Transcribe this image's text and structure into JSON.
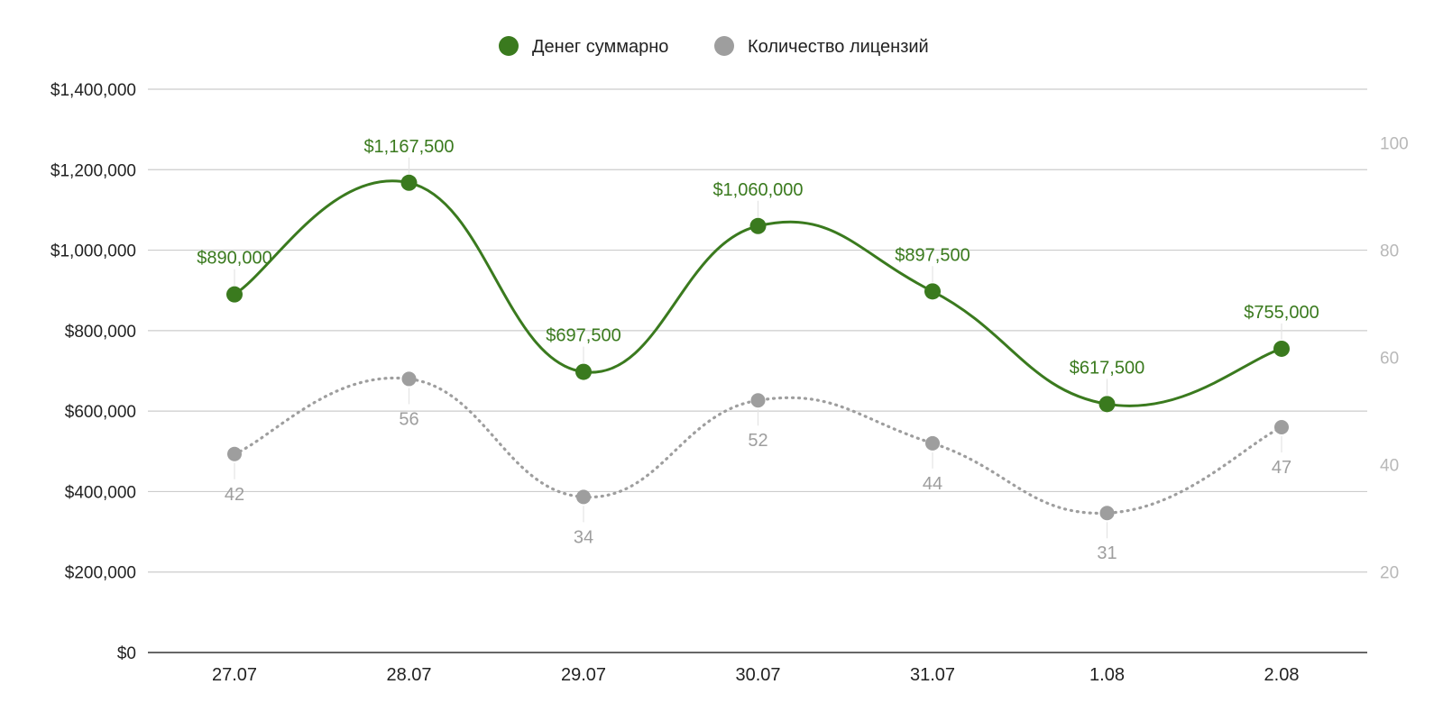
{
  "chart_data": {
    "type": "line",
    "categories": [
      "27.07",
      "28.07",
      "29.07",
      "30.07",
      "31.07",
      "1.08",
      "2.08"
    ],
    "series": [
      {
        "name": "Денег суммарно",
        "axis": "left",
        "color": "#3a7a1e",
        "line_style": "solid",
        "values": [
          890000,
          1167500,
          697500,
          1060000,
          897500,
          617500,
          755000
        ],
        "data_labels": [
          "$890,000",
          "$1,167,500",
          "$697,500",
          "$1,060,000",
          "$897,500",
          "$617,500",
          "$755,000"
        ]
      },
      {
        "name": "Количество лицензий",
        "axis": "right",
        "color": "#9e9e9e",
        "line_style": "dotted",
        "values": [
          42,
          56,
          34,
          52,
          44,
          31,
          47
        ],
        "data_labels": [
          "42",
          "56",
          "34",
          "52",
          "44",
          "31",
          "47"
        ]
      }
    ],
    "y_left": {
      "min": 0,
      "max": 1400000,
      "ticks": [
        0,
        200000,
        400000,
        600000,
        800000,
        1000000,
        1200000,
        1400000
      ],
      "tick_labels": [
        "$0",
        "$200,000",
        "$400,000",
        "$600,000",
        "$800,000",
        "$1,000,000",
        "$1,200,000",
        "$1,400,000"
      ]
    },
    "y_right": {
      "min": 5,
      "max": 110,
      "ticks": [
        20,
        40,
        60,
        80,
        100
      ],
      "tick_labels": [
        "20",
        "40",
        "60",
        "80",
        "100"
      ],
      "color": "#b8b8b8"
    },
    "legend": {
      "position": "top-center"
    },
    "grid": true
  }
}
